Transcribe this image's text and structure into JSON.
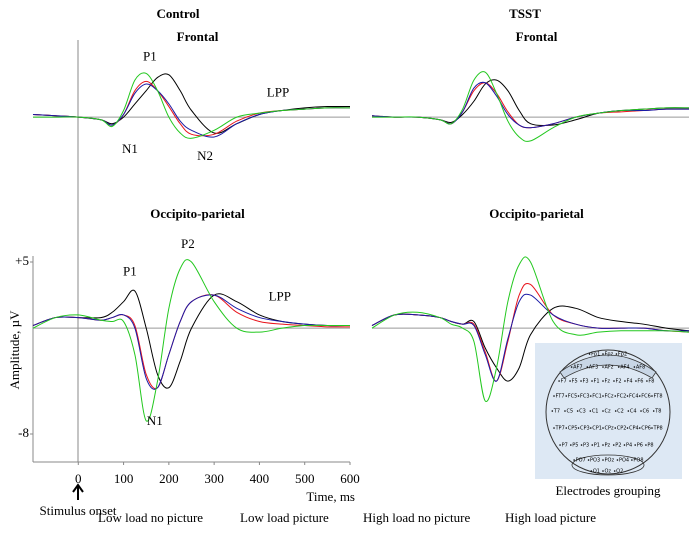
{
  "figure": {
    "columns": [
      "Control",
      "TSST"
    ],
    "y_label": "Amplitude, µV",
    "x_label": "Time, ms",
    "onset_label": "Stimulus onset",
    "electrodes": {
      "caption": "Electrodes grouping",
      "rows": [
        [
          "Fp1",
          "Fpz",
          "Fp2"
        ],
        [
          "AF7",
          "AF3",
          "AFz",
          "AF4",
          "AF8"
        ],
        [
          "F7",
          "F5",
          "F3",
          "F1",
          "Fz",
          "F2",
          "F4",
          "F6",
          "F8"
        ],
        [
          "FT7",
          "FC5",
          "FC3",
          "FC1",
          "FCz",
          "FC2",
          "FC4",
          "FC6",
          "FT8"
        ],
        [
          "T7",
          "C5",
          "C3",
          "C1",
          "Cz",
          "C2",
          "C4",
          "C6",
          "T8"
        ],
        [
          "TP7",
          "CP5",
          "CP3",
          "CP1",
          "CPz",
          "CP2",
          "CP4",
          "CP6",
          "TP8"
        ],
        [
          "P7",
          "P5",
          "P3",
          "P1",
          "Pz",
          "P2",
          "P4",
          "P6",
          "P8"
        ],
        [
          "PO7",
          "PO3",
          "POz",
          "PO4",
          "PO8"
        ],
        [
          "O1",
          "Oz",
          "O2"
        ]
      ]
    }
  },
  "chart_data": [
    {
      "type": "line",
      "title": "Frontal",
      "xlim": [
        -100,
        600
      ],
      "ylim": [
        -4,
        5
      ],
      "x": [
        -100,
        -50,
        0,
        50,
        75,
        100,
        125,
        150,
        175,
        200,
        225,
        250,
        300,
        350,
        400,
        450,
        500,
        550,
        600
      ],
      "series": [
        {
          "name": "Low load no picture",
          "color": "#000000",
          "values": [
            0.2,
            0.1,
            0.0,
            -0.2,
            -0.5,
            0.0,
            1.0,
            2.0,
            3.0,
            3.2,
            2.0,
            0.5,
            -1.2,
            -0.5,
            0.2,
            0.5,
            0.7,
            0.8,
            0.8
          ]
        },
        {
          "name": "Low load picture",
          "color": "#e8141c",
          "values": [
            0.2,
            0.1,
            0.0,
            -0.2,
            -0.6,
            0.2,
            2.0,
            2.7,
            2.0,
            0.8,
            -0.5,
            -1.3,
            -1.3,
            -0.3,
            0.3,
            0.5,
            0.6,
            0.7,
            0.7
          ]
        },
        {
          "name": "High load no picture",
          "color": "#1a1aa6",
          "values": [
            0.2,
            0.1,
            0.0,
            -0.2,
            -0.6,
            0.2,
            1.8,
            2.5,
            2.0,
            1.0,
            -0.3,
            -1.0,
            -1.5,
            -0.5,
            0.2,
            0.5,
            0.6,
            0.7,
            0.7
          ]
        },
        {
          "name": "High load picture",
          "color": "#22c81e",
          "values": [
            0.0,
            0.0,
            0.0,
            -0.2,
            -0.7,
            0.5,
            2.8,
            3.3,
            2.0,
            0.0,
            -1.2,
            -1.6,
            -1.0,
            0.0,
            0.3,
            0.5,
            0.6,
            0.7,
            0.7
          ]
        }
      ],
      "annotations": [
        {
          "text": "P1",
          "x": 158,
          "y": 4.5
        },
        {
          "text": "N1",
          "x": 114,
          "y": -2.5
        },
        {
          "text": "N2",
          "x": 280,
          "y": -3.0
        },
        {
          "text": "LPP",
          "x": 441,
          "y": 1.8
        }
      ]
    },
    {
      "type": "line",
      "title": "Frontal",
      "xlim": [
        -100,
        600
      ],
      "ylim": [
        -4,
        5
      ],
      "x": [
        -100,
        -50,
        0,
        50,
        75,
        100,
        125,
        150,
        175,
        200,
        225,
        250,
        300,
        350,
        400,
        450,
        500,
        550,
        600
      ],
      "series": [
        {
          "values": [
            0.1,
            0.0,
            0.0,
            -0.2,
            -0.4,
            0.2,
            1.2,
            2.5,
            2.8,
            2.0,
            0.5,
            -0.5,
            -0.6,
            -0.2,
            0.3,
            0.5,
            0.6,
            0.7,
            0.7
          ]
        },
        {
          "values": [
            0.1,
            0.0,
            0.0,
            -0.2,
            -0.5,
            0.4,
            2.0,
            2.6,
            1.8,
            0.4,
            -0.6,
            -0.8,
            -0.5,
            0.0,
            0.3,
            0.4,
            0.5,
            0.6,
            0.6
          ]
        },
        {
          "values": [
            0.1,
            0.0,
            0.0,
            -0.2,
            -0.5,
            0.4,
            2.2,
            2.6,
            1.6,
            0.2,
            -0.6,
            -0.8,
            -0.5,
            0.0,
            0.3,
            0.5,
            0.5,
            0.6,
            0.6
          ]
        },
        {
          "values": [
            0.0,
            0.0,
            0.0,
            -0.2,
            -0.5,
            0.6,
            2.8,
            3.4,
            1.8,
            -0.3,
            -1.5,
            -1.8,
            -0.8,
            0.0,
            0.3,
            0.5,
            0.6,
            0.7,
            0.7
          ]
        }
      ]
    },
    {
      "type": "line",
      "title": "Occipito-parietal",
      "xlim": [
        -100,
        600
      ],
      "ylim": [
        -8,
        5
      ],
      "x": [
        -100,
        -50,
        0,
        50,
        75,
        100,
        125,
        150,
        175,
        200,
        225,
        250,
        300,
        350,
        400,
        450,
        500,
        550,
        600
      ],
      "xticks": [
        0,
        100,
        200,
        300,
        400,
        500,
        600
      ],
      "yticks": [
        {
          "value": 5,
          "label": "+5"
        },
        -8
      ],
      "series": [
        {
          "values": [
            0.2,
            0.8,
            0.8,
            0.8,
            1.2,
            2.0,
            2.8,
            0.0,
            -3.5,
            -4.5,
            -2.5,
            0.0,
            2.5,
            2.0,
            1.0,
            0.5,
            0.3,
            0.2,
            0.2
          ]
        },
        {
          "values": [
            0.2,
            0.8,
            0.8,
            0.6,
            0.8,
            1.0,
            0.2,
            -3.5,
            -4.5,
            -2.0,
            0.5,
            2.0,
            2.5,
            1.2,
            0.5,
            0.3,
            0.2,
            0.1,
            0.1
          ]
        },
        {
          "values": [
            0.2,
            0.8,
            0.8,
            0.6,
            0.8,
            1.0,
            0.0,
            -3.8,
            -4.5,
            -2.0,
            0.5,
            2.0,
            2.5,
            1.5,
            0.8,
            0.5,
            0.3,
            0.2,
            0.2
          ]
        },
        {
          "values": [
            0.0,
            0.8,
            1.0,
            0.6,
            0.5,
            0.5,
            -2.0,
            -7.0,
            -4.0,
            1.5,
            4.5,
            5.0,
            2.0,
            0.0,
            -0.3,
            0.0,
            0.2,
            0.2,
            0.2
          ]
        }
      ],
      "annotations": [
        {
          "text": "P1",
          "x": 114,
          "y": 4.2
        },
        {
          "text": "P2",
          "x": 242,
          "y": 6.3
        },
        {
          "text": "LPP",
          "x": 445,
          "y": 2.3
        },
        {
          "text": "N1",
          "x": 169,
          "y": -7.1
        }
      ]
    },
    {
      "type": "line",
      "title": "Occipito-parietal",
      "xlim": [
        -100,
        600
      ],
      "ylim": [
        -8,
        5
      ],
      "x": [
        -100,
        -50,
        0,
        50,
        75,
        100,
        125,
        150,
        175,
        200,
        225,
        250,
        300,
        350,
        400,
        450,
        500,
        550,
        600
      ],
      "series": [
        {
          "values": [
            0.2,
            1.0,
            1.0,
            0.8,
            0.5,
            0.3,
            0.5,
            -1.5,
            -3.0,
            -4.0,
            -3.0,
            -0.5,
            1.5,
            1.5,
            0.8,
            0.5,
            0.3,
            0.0,
            -0.2
          ]
        },
        {
          "values": [
            0.2,
            1.0,
            1.0,
            0.8,
            0.5,
            0.3,
            0.3,
            -1.8,
            -4.0,
            -1.0,
            2.5,
            3.3,
            1.0,
            0.3,
            0.0,
            0.0,
            0.0,
            -0.2,
            -0.3
          ]
        },
        {
          "values": [
            0.2,
            1.0,
            1.0,
            0.8,
            0.5,
            0.3,
            0.2,
            -2.0,
            -4.0,
            -0.8,
            2.0,
            2.5,
            1.0,
            0.3,
            0.0,
            0.0,
            0.0,
            -0.2,
            -0.2
          ]
        },
        {
          "values": [
            0.0,
            1.0,
            1.2,
            0.8,
            0.3,
            0.0,
            -1.0,
            -5.5,
            -3.0,
            2.0,
            4.8,
            5.0,
            0.5,
            -0.5,
            -0.3,
            -0.2,
            -0.2,
            -0.2,
            -0.3
          ]
        }
      ]
    }
  ]
}
